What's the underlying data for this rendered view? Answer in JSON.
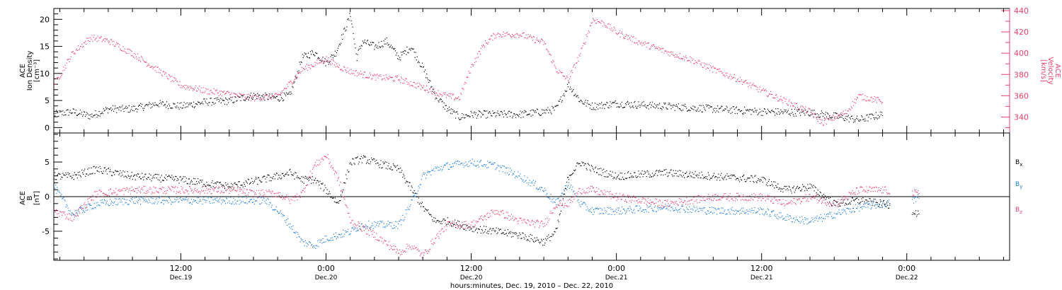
{
  "figure": {
    "xaxis_title": "hours:minutes, Dec. 19, 2010 – Dec. 22, 2010",
    "x_ticks": [
      {
        "hour": 12,
        "time": "12:00",
        "date": "Dec.19"
      },
      {
        "hour": 24,
        "time": "0:00",
        "date": "Dec.20"
      },
      {
        "hour": 36,
        "time": "12:00",
        "date": "Dec.20"
      },
      {
        "hour": 48,
        "time": "0:00",
        "date": "Dec.21"
      },
      {
        "hour": 60,
        "time": "12:00",
        "date": "Dec.21"
      },
      {
        "hour": 72,
        "time": "0:00",
        "date": "Dec.22"
      }
    ]
  },
  "colors": {
    "black": "#000000",
    "pink": "#e8416d",
    "blue": "#1f7fdb"
  },
  "chart_data": [
    {
      "type": "scatter",
      "panel": "top",
      "ylabel_left": [
        "ACE",
        "Ion Density",
        "[cm⁻³]"
      ],
      "ylabel_right": [
        "ACE",
        "Velocity",
        "[km/s]"
      ],
      "x_unit": "hours since Dec. 19, 2010 00:00",
      "xlim": [
        1.5,
        80.5
      ],
      "ylim_left": [
        -1,
        22
      ],
      "ylim_right": [
        325,
        442
      ],
      "left_ticks": [
        0,
        5,
        10,
        15,
        20
      ],
      "right_ticks": [
        340,
        360,
        380,
        400,
        420,
        440
      ],
      "series": [
        {
          "color": "#000000",
          "axis": "left",
          "x": [
            1.5,
            3,
            4.5,
            6,
            8,
            10,
            12,
            14,
            16,
            18,
            20,
            21,
            22,
            23,
            24,
            24.8,
            25.5,
            26,
            26.5,
            27,
            28,
            29,
            30,
            31,
            32,
            33,
            34,
            35,
            36,
            38,
            40,
            42,
            43,
            44,
            45,
            46,
            48,
            52,
            56,
            60,
            64,
            68,
            70
          ],
          "y": [
            2.5,
            3,
            2.2,
            3.5,
            3.5,
            4.5,
            4,
            4.8,
            5,
            6,
            5.5,
            6,
            13,
            14,
            12,
            14,
            18,
            21,
            13,
            16,
            15,
            16,
            13,
            15,
            11,
            6,
            3.5,
            2,
            2.5,
            2.5,
            2.5,
            3,
            3.5,
            8,
            5,
            4,
            4.5,
            4,
            3.5,
            3,
            2.8,
            1.5,
            2.5
          ]
        },
        {
          "color": "#e8416d",
          "axis": "right",
          "x": [
            1.5,
            3,
            4.5,
            6,
            8,
            10,
            12,
            14,
            16,
            18,
            20,
            21,
            22,
            23,
            24,
            25,
            26,
            28,
            30,
            32,
            34,
            35,
            36,
            37,
            38,
            40,
            42,
            43,
            44,
            45,
            46,
            47,
            48,
            50,
            52,
            54,
            56,
            58,
            60,
            62,
            64,
            65,
            66,
            67,
            68,
            70
          ],
          "y": [
            370,
            400,
            415,
            412,
            400,
            385,
            370,
            365,
            362,
            358,
            360,
            372,
            385,
            390,
            395,
            388,
            383,
            378,
            376,
            368,
            360,
            358,
            388,
            408,
            418,
            418,
            410,
            385,
            375,
            400,
            432,
            428,
            420,
            410,
            402,
            395,
            385,
            376,
            365,
            355,
            345,
            335,
            340,
            345,
            360,
            355
          ]
        }
      ],
      "gaps": [
        [
          70.6,
          72.4
        ],
        [
          73.2,
          80.5
        ]
      ]
    },
    {
      "type": "scatter",
      "panel": "bottom",
      "ylabel_left": [
        "ACE",
        "B",
        "[nT]"
      ],
      "x_unit": "hours since Dec. 19, 2010 00:00",
      "xlim": [
        1.5,
        80.5
      ],
      "ylim": [
        -9.2,
        9.2
      ],
      "y_ticks": [
        -5,
        0,
        5
      ],
      "zero_line": true,
      "series": [
        {
          "name": "Bx",
          "color": "#000000",
          "x": [
            1.5,
            3,
            5,
            8,
            12,
            16,
            20,
            21,
            22,
            23,
            24,
            25,
            26,
            27,
            28,
            30,
            32,
            33,
            34,
            36,
            38,
            40,
            42,
            43,
            44,
            45,
            46,
            48,
            52,
            56,
            60,
            62,
            64,
            66,
            68,
            70,
            72.5,
            73
          ],
          "y": [
            3,
            3,
            4,
            3,
            2.5,
            1.5,
            3,
            3.5,
            2.5,
            2.5,
            1,
            -1,
            5,
            5.5,
            5,
            4,
            -1.5,
            -3.5,
            -3.5,
            -4.5,
            -5,
            -5.5,
            -6.5,
            -5,
            3,
            5,
            4,
            3,
            3.5,
            3,
            2.5,
            1,
            1.5,
            -1,
            -0.5,
            -1,
            -2,
            -2.5
          ]
        },
        {
          "name": "By",
          "color": "#1f7fdb",
          "x": [
            1.5,
            3,
            5,
            8,
            12,
            16,
            19,
            20,
            21,
            22,
            23,
            24,
            25,
            26,
            27,
            28,
            30,
            31,
            32,
            33,
            34,
            36,
            38,
            40,
            42,
            43,
            44,
            45,
            46,
            48,
            52,
            56,
            60,
            62,
            64,
            66,
            68,
            70,
            72.5,
            73
          ],
          "y": [
            1.5,
            -2.5,
            -1,
            -0.5,
            -0.5,
            -0.5,
            -0.5,
            -2,
            -4,
            -6.5,
            -7,
            -6,
            -5.5,
            -5,
            -4,
            -4,
            -4,
            -1,
            3,
            4,
            4.5,
            5,
            4.5,
            3,
            1,
            -1,
            2,
            -1,
            -2,
            -2,
            -1.5,
            -2,
            -2,
            -3,
            -3.5,
            -2.5,
            -1.5,
            -1,
            -0.5,
            0
          ]
        },
        {
          "name": "Bz",
          "color": "#e8416d",
          "x": [
            1.5,
            3,
            5,
            8,
            12,
            16,
            18,
            20,
            21,
            22,
            23,
            24,
            25,
            26,
            27,
            28,
            30,
            31,
            32,
            33,
            34,
            36,
            38,
            40,
            42,
            43,
            44,
            45,
            46,
            48,
            52,
            56,
            60,
            62,
            64,
            66,
            68,
            70,
            72.5,
            73
          ],
          "y": [
            -2,
            -3,
            0.5,
            1,
            1,
            1,
            0.5,
            0.5,
            -0.5,
            0.5,
            4.5,
            6,
            2.5,
            -3.5,
            -4.5,
            -5.5,
            -8,
            -7,
            -8.5,
            -6,
            -4,
            -4,
            -2,
            -3.5,
            -4,
            -1,
            -1,
            1,
            1,
            0,
            -1,
            0,
            0,
            -1,
            0,
            -1,
            1,
            1,
            0.5,
            0.5
          ]
        }
      ],
      "legend_labels": [
        "B",
        "B",
        "B"
      ],
      "legend_subscripts": [
        "x",
        "y",
        "z"
      ],
      "gaps": [
        [
          70.6,
          72.4
        ],
        [
          73.2,
          80.5
        ]
      ]
    }
  ]
}
